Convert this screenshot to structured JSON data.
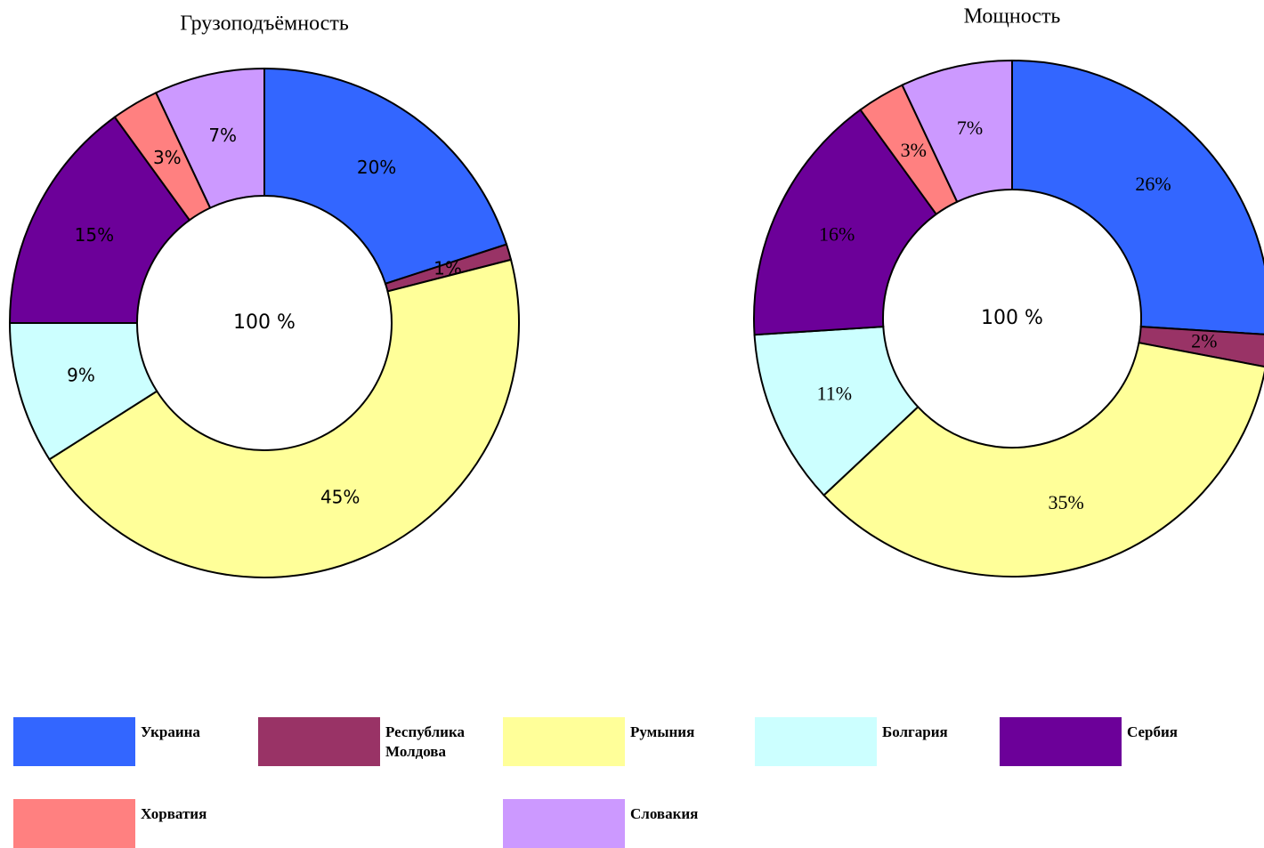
{
  "chart_data": [
    {
      "type": "pie",
      "title": "Грузоподъёмность",
      "center_label": "100 %",
      "values": [
        20,
        1,
        45,
        9,
        15,
        3,
        7
      ],
      "value_labels": [
        "20%",
        "1%",
        "45%",
        "9%",
        "15%",
        "3%",
        "7%"
      ]
    },
    {
      "type": "pie",
      "title": "Мощность",
      "center_label": "100 %",
      "values": [
        26,
        2,
        35,
        11,
        16,
        3,
        7
      ],
      "value_labels": [
        "26%",
        "2%",
        "35%",
        "11%",
        "16%",
        "3%",
        "7%"
      ]
    }
  ],
  "legend": {
    "categories": [
      "Украина",
      "Республика Молдова",
      "Румыния",
      "Болгария",
      "Сербия",
      "Хорватия",
      "Словакия"
    ],
    "colors": [
      "#3366ff",
      "#993366",
      "#ffff99",
      "#ccffff",
      "#6c0099",
      "#ff8080",
      "#cc99ff"
    ]
  }
}
